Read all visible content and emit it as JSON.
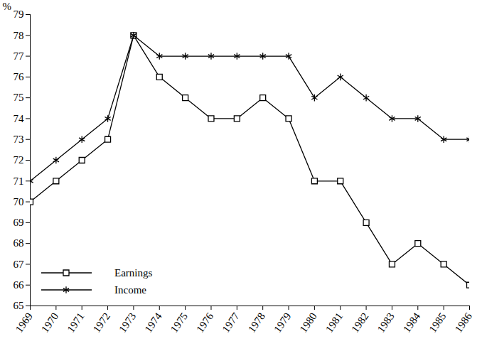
{
  "chart_data": {
    "type": "line",
    "ylabel": "%",
    "x": [
      1969,
      1970,
      1971,
      1972,
      1973,
      1974,
      1975,
      1976,
      1977,
      1978,
      1979,
      1980,
      1981,
      1982,
      1983,
      1984,
      1985,
      1986
    ],
    "xlim": [
      1969,
      1986
    ],
    "xticks": [
      1969,
      1970,
      1971,
      1972,
      1973,
      1974,
      1975,
      1976,
      1977,
      1978,
      1979,
      1980,
      1981,
      1982,
      1983,
      1984,
      1985,
      1986
    ],
    "ylim": [
      65,
      79
    ],
    "yticks": [
      65,
      66,
      67,
      68,
      69,
      70,
      71,
      72,
      73,
      74,
      75,
      76,
      77,
      78,
      79
    ],
    "grid": false,
    "legend": "lower left",
    "series": [
      {
        "name": "Earnings",
        "color": "#000000",
        "marker": "square",
        "line_style": "solid",
        "values": [
          70,
          71,
          72,
          73,
          78,
          76,
          75,
          74,
          74,
          75,
          74,
          71,
          71,
          69,
          67,
          68,
          67,
          66
        ]
      },
      {
        "name": "Income",
        "color": "#000000",
        "marker": "asterisk",
        "line_style": "solid",
        "values": [
          71,
          72,
          73,
          74,
          78,
          77,
          77,
          77,
          77,
          77,
          77,
          75,
          76,
          75,
          74,
          74,
          73,
          73
        ]
      }
    ]
  }
}
